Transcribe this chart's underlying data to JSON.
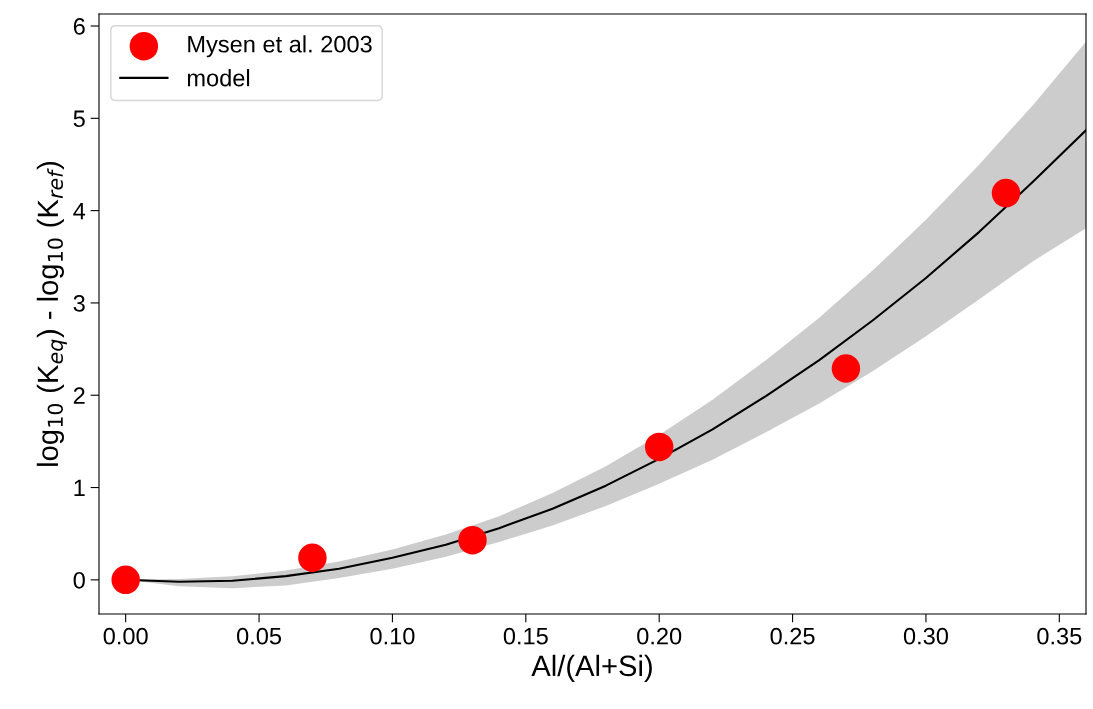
{
  "chart_data": {
    "type": "scatter",
    "xlabel": "Al/(Al+Si)",
    "ylabel": "log$_{10}$ (K$_{eq}$) - log$_{10}$ (K$_{ref}$)",
    "xlim": [
      -0.01,
      0.36
    ],
    "ylim": [
      -0.37,
      6.13
    ],
    "xticks": [
      {
        "value": 0,
        "label": "0.00"
      },
      {
        "value": 0.05,
        "label": "0.05"
      },
      {
        "value": 0.1,
        "label": "0.10"
      },
      {
        "value": 0.15,
        "label": "0.15"
      },
      {
        "value": 0.2,
        "label": "0.20"
      },
      {
        "value": 0.25,
        "label": "0.25"
      },
      {
        "value": 0.3,
        "label": "0.30"
      },
      {
        "value": 0.35,
        "label": "0.35"
      }
    ],
    "yticks": [
      0,
      1,
      2,
      3,
      4,
      5,
      6
    ],
    "grid": false,
    "legend": "top left",
    "series": [
      {
        "name": "Mysen et al. 2003",
        "marker": "circle",
        "color": "#ff0000",
        "x": [
          0,
          0.07,
          0.13,
          0.2,
          0.27,
          0.33
        ],
        "values": [
          0,
          0.24,
          0.43,
          1.44,
          2.29,
          4.19
        ]
      },
      {
        "name": "model",
        "type": "line",
        "marker": "none",
        "line_style": "solid",
        "color": "#000000",
        "x": [
          0,
          0.02,
          0.04,
          0.06,
          0.08,
          0.1,
          0.12,
          0.14,
          0.16,
          0.18,
          0.2,
          0.22,
          0.24,
          0.26,
          0.28,
          0.3,
          0.32,
          0.34,
          0.36
        ],
        "values": [
          0,
          -0.02,
          -0.01,
          0.04,
          0.12,
          0.24,
          0.38,
          0.56,
          0.77,
          1.02,
          1.31,
          1.63,
          1.99,
          2.38,
          2.81,
          3.27,
          3.77,
          4.31,
          4.87
        ],
        "upper": [
          0,
          0.01,
          0.04,
          0.1,
          0.2,
          0.33,
          0.49,
          0.69,
          0.94,
          1.23,
          1.57,
          1.95,
          2.38,
          2.84,
          3.35,
          3.9,
          4.5,
          5.14,
          5.83
        ],
        "lower": [
          0,
          -0.07,
          -0.09,
          -0.06,
          0.02,
          0.12,
          0.25,
          0.41,
          0.59,
          0.8,
          1.04,
          1.3,
          1.6,
          1.91,
          2.26,
          2.64,
          3.04,
          3.45,
          3.81
        ]
      }
    ]
  }
}
